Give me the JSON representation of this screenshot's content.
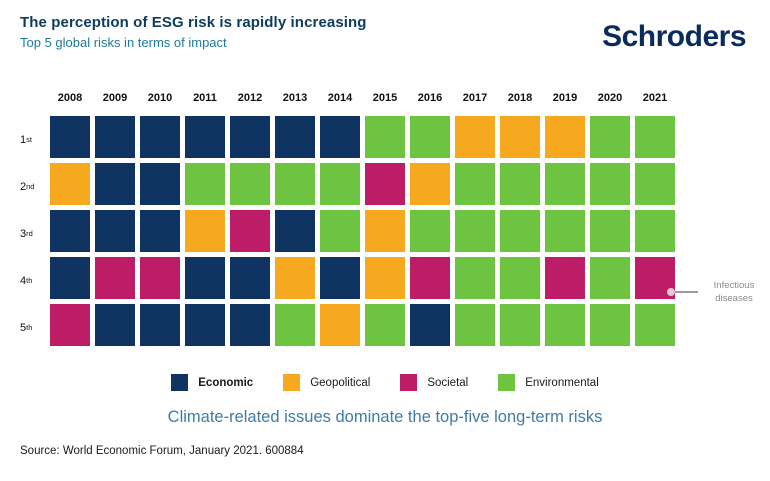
{
  "header": {
    "title": "The perception of ESG risk is rapidly increasing",
    "subtitle": "Top 5 global risks in terms of impact",
    "logo_text": "Schroders"
  },
  "chart_data": {
    "type": "heatmap",
    "title": "Top 5 global risks in terms of impact",
    "x_categories": [
      "2008",
      "2009",
      "2010",
      "2011",
      "2012",
      "2013",
      "2014",
      "2015",
      "2016",
      "2017",
      "2018",
      "2019",
      "2020",
      "2021"
    ],
    "y_categories": [
      {
        "num": "1",
        "suffix": "st"
      },
      {
        "num": "2",
        "suffix": "nd"
      },
      {
        "num": "3",
        "suffix": "rd"
      },
      {
        "num": "4",
        "suffix": "th"
      },
      {
        "num": "5",
        "suffix": "th"
      }
    ],
    "legend": [
      {
        "key": "economic",
        "label": "Economic",
        "color": "#0F3461",
        "bold": true
      },
      {
        "key": "geopolitical",
        "label": "Geopolitical",
        "color": "#F6A81E",
        "bold": false
      },
      {
        "key": "societal",
        "label": "Societal",
        "color": "#BD1D67",
        "bold": false
      },
      {
        "key": "environmental",
        "label": "Environmental",
        "color": "#6CC440",
        "bold": false
      }
    ],
    "legend_position": "bottom",
    "rows": [
      [
        "economic",
        "economic",
        "economic",
        "economic",
        "economic",
        "economic",
        "economic",
        "environmental",
        "environmental",
        "geopolitical",
        "geopolitical",
        "geopolitical",
        "environmental",
        "environmental"
      ],
      [
        "geopolitical",
        "economic",
        "economic",
        "environmental",
        "environmental",
        "environmental",
        "environmental",
        "societal",
        "geopolitical",
        "environmental",
        "environmental",
        "environmental",
        "environmental",
        "environmental"
      ],
      [
        "economic",
        "economic",
        "economic",
        "geopolitical",
        "societal",
        "economic",
        "environmental",
        "geopolitical",
        "environmental",
        "environmental",
        "environmental",
        "environmental",
        "environmental",
        "environmental"
      ],
      [
        "economic",
        "societal",
        "societal",
        "economic",
        "economic",
        "geopolitical",
        "economic",
        "geopolitical",
        "societal",
        "environmental",
        "environmental",
        "societal",
        "environmental",
        "societal"
      ],
      [
        "societal",
        "economic",
        "economic",
        "economic",
        "economic",
        "environmental",
        "geopolitical",
        "environmental",
        "economic",
        "environmental",
        "environmental",
        "environmental",
        "environmental",
        "environmental"
      ]
    ],
    "annotation": {
      "text": "Infectious diseases",
      "year": "2021",
      "rank": "4th"
    }
  },
  "caption": "Climate-related issues dominate the top-five long-term risks",
  "source": "Source: World Economic Forum, January 2021. 600884"
}
